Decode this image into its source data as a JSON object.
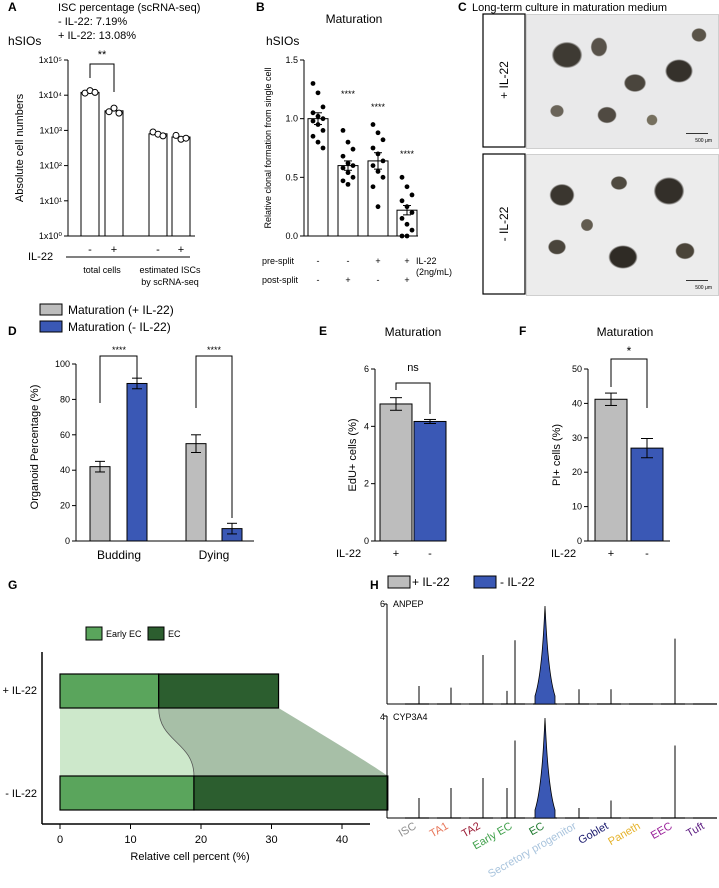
{
  "panels": {
    "A": {
      "label": "A",
      "annotation": [
        "ISC percentage (scRNA-seq)",
        "- IL-22: 7.19%",
        "+ IL-22: 13.08%"
      ],
      "group_label": "hSIOs",
      "ylabel": "Absolute cell numbers",
      "significance": "**",
      "row_label": "IL-22",
      "signs": [
        "-",
        "+",
        "-",
        "+"
      ],
      "group_names": [
        "total cells",
        "estimated ISCs",
        "by scRNA-seq"
      ],
      "y_ticks": [
        "1x10⁰",
        "1x10¹",
        "1x10²",
        "1x10³",
        "1x10⁴",
        "1x10⁵"
      ]
    },
    "B": {
      "label": "B",
      "title": "Maturation",
      "group_label": "hSIOs",
      "ylabel": "Relative clonal formation from single cell",
      "row1_label": "pre-split",
      "row2_label": "post-split",
      "row1": [
        "-",
        "-",
        "+",
        "+"
      ],
      "row2": [
        "-",
        "+",
        "-",
        "+"
      ],
      "treatment": [
        "IL-22",
        "(2ng/mL)"
      ],
      "stars": [
        "****",
        "****",
        "****"
      ],
      "y_ticks": [
        "0.0",
        "0.5",
        "1.0",
        "1.5"
      ]
    },
    "C": {
      "label": "C",
      "title": "Long-term culture in maturation medium",
      "row_top": "+ IL-22",
      "row_bottom": "- IL-22",
      "scale_bar": "500 μm"
    },
    "D": {
      "label": "D",
      "legend": [
        "Maturation (+ IL-22)",
        "Maturation (- IL-22)"
      ],
      "ylabel": "Organoid Percentage (%)",
      "stars": [
        "****",
        "****"
      ],
      "categories": [
        "Budding",
        "Dying"
      ],
      "y_ticks": [
        "0",
        "20",
        "40",
        "60",
        "80",
        "100"
      ]
    },
    "E": {
      "label": "E",
      "title": "Maturation",
      "ylabel": "EdU+ cells (%)",
      "sig": "ns",
      "row_label": "IL-22",
      "signs": [
        "+",
        "-"
      ],
      "y_ticks": [
        "0",
        "2",
        "4",
        "6"
      ]
    },
    "F": {
      "label": "F",
      "title": "Maturation",
      "ylabel": "PI+ cells (%)",
      "sig": "*",
      "row_label": "IL-22",
      "signs": [
        "+",
        "-"
      ],
      "y_ticks": [
        "0",
        "10",
        "20",
        "30",
        "40",
        "50"
      ]
    },
    "G": {
      "label": "G",
      "legend": [
        "Early EC",
        "EC"
      ],
      "rows": [
        "+ IL-22",
        "- IL-22"
      ],
      "xlabel": "Relative cell percent (%)",
      "x_ticks": [
        "0",
        "10",
        "20",
        "30",
        "40"
      ]
    },
    "H": {
      "label": "H",
      "legend": [
        "+ IL-22",
        "- IL-22"
      ],
      "genes": [
        "ANPEP",
        "CYP3A4"
      ],
      "y_max": [
        "6",
        "4"
      ],
      "cell_types": [
        "ISC",
        "TA1",
        "TA2",
        "Early EC",
        "EC",
        "Secretory progenitor",
        "Goblet",
        "Paneth",
        "EEC",
        "Tuft"
      ]
    }
  },
  "colors": {
    "grey": "#bdbdbd",
    "blue": "#3a58b5",
    "early_ec": "#5aa55c",
    "ec": "#2c5e2f",
    "early_ec_band": "#cde8cb",
    "ec_band": "#a7bfa7",
    "celltypes": [
      "#8c8c8c",
      "#e8775a",
      "#9b1b34",
      "#3fa04a",
      "#1f7a2e",
      "#a9c4dd",
      "#1a1a6e",
      "#e5b22a",
      "#9a1f9a",
      "#5b1a80"
    ]
  },
  "chart_data": [
    {
      "panel": "A",
      "type": "bar",
      "yscale": "log",
      "ylim": [
        1,
        100000
      ],
      "categories": [
        "-",
        "+",
        "-",
        "+"
      ],
      "values": [
        12000,
        3600,
        800,
        650
      ],
      "points": [
        [
          11500,
          13500,
          12000
        ],
        [
          3400,
          4300,
          3100
        ],
        [
          900,
          780,
          700
        ],
        [
          720,
          560,
          600
        ]
      ]
    },
    {
      "panel": "B",
      "type": "bar",
      "ylim": [
        0,
        1.5
      ],
      "categories": [
        "-/-",
        "-/+",
        "+/-",
        "+/+"
      ],
      "values": [
        1.0,
        0.6,
        0.64,
        0.22
      ],
      "errors": [
        0.05,
        0.04,
        0.07,
        0.04
      ],
      "points": [
        [
          1.3,
          1.22,
          1.1,
          1.05,
          1.02,
          1.0,
          0.98,
          0.95,
          0.9,
          0.85,
          0.8,
          0.75
        ],
        [
          0.9,
          0.8,
          0.74,
          0.68,
          0.62,
          0.6,
          0.58,
          0.54,
          0.5,
          0.47,
          0.44
        ],
        [
          0.95,
          0.88,
          0.82,
          0.75,
          0.7,
          0.64,
          0.6,
          0.55,
          0.5,
          0.42,
          0.25
        ],
        [
          0.5,
          0.42,
          0.35,
          0.3,
          0.25,
          0.2,
          0.15,
          0.1,
          0.05,
          0.0,
          0.0
        ]
      ]
    },
    {
      "panel": "D",
      "type": "bar",
      "ylim": [
        0,
        100
      ],
      "categories": [
        "Budding",
        "Dying"
      ],
      "series": [
        {
          "name": "Maturation (+ IL-22)",
          "values": [
            42,
            55
          ],
          "errors": [
            3,
            5
          ]
        },
        {
          "name": "Maturation (- IL-22)",
          "values": [
            89,
            7
          ],
          "errors": [
            3,
            3
          ]
        }
      ]
    },
    {
      "panel": "E",
      "type": "bar",
      "ylim": [
        0,
        6
      ],
      "categories": [
        "+",
        "-"
      ],
      "values": [
        4.78,
        4.17
      ],
      "errors": [
        0.22,
        0.07
      ]
    },
    {
      "panel": "F",
      "type": "bar",
      "ylim": [
        0,
        50
      ],
      "categories": [
        "+",
        "-"
      ],
      "values": [
        41.2,
        27
      ],
      "errors": [
        1.8,
        2.8
      ]
    },
    {
      "panel": "G",
      "type": "bar",
      "orientation": "horizontal",
      "stacked": true,
      "xlim": [
        0,
        47
      ],
      "categories": [
        "+ IL-22",
        "- IL-22"
      ],
      "series": [
        {
          "name": "Early EC",
          "values": [
            14,
            19
          ]
        },
        {
          "name": "EC",
          "values": [
            17,
            27.5
          ]
        }
      ]
    },
    {
      "panel": "H",
      "type": "violin",
      "categories": [
        "ISC",
        "TA1",
        "TA2",
        "Early EC",
        "EC",
        "Secretory progenitor",
        "Goblet",
        "Paneth",
        "EEC",
        "Tuft"
      ],
      "genes": [
        {
          "name": "ANPEP",
          "ymax": 6,
          "plus": [
            0,
            0,
            0,
            0.8,
            0,
            0,
            0,
            0,
            0,
            0
          ],
          "minus": [
            1.1,
            1.0,
            3.0,
            3.9,
            6.0,
            0.9,
            0.9,
            0,
            4.0,
            0
          ]
        },
        {
          "name": "CYP3A4",
          "ymax": 4,
          "plus": [
            0,
            0,
            0,
            1.2,
            0,
            0,
            0,
            0,
            0,
            0
          ],
          "minus": [
            0.8,
            1.2,
            1.6,
            3.1,
            4.0,
            0.4,
            0.7,
            0,
            2.9,
            0
          ]
        }
      ]
    }
  ]
}
